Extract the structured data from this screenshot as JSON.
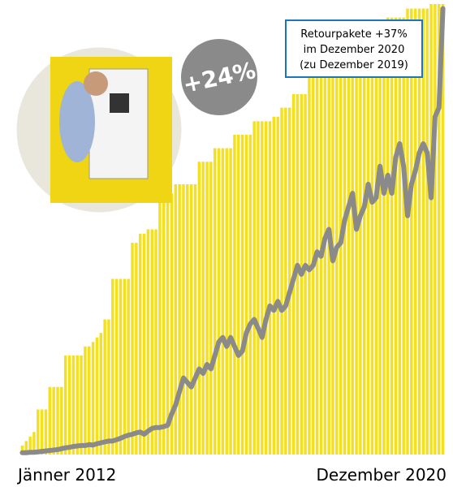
{
  "chart_data": {
    "type": "bar",
    "categories": [
      "Jänner 2012",
      null,
      null,
      null,
      null,
      null,
      null,
      null,
      null,
      null,
      null,
      null,
      null,
      null,
      null,
      null,
      null,
      null,
      null,
      null,
      null,
      null,
      null,
      null,
      null,
      null,
      null,
      null,
      null,
      null,
      null,
      null,
      null,
      null,
      null,
      null,
      null,
      null,
      null,
      null,
      null,
      null,
      null,
      null,
      null,
      null,
      null,
      null,
      null,
      null,
      null,
      null,
      null,
      null,
      null,
      null,
      null,
      null,
      null,
      null,
      null,
      null,
      null,
      null,
      null,
      null,
      null,
      null,
      null,
      null,
      null,
      null,
      null,
      null,
      null,
      null,
      null,
      null,
      null,
      null,
      null,
      null,
      null,
      null,
      null,
      null,
      null,
      null,
      null,
      null,
      null,
      null,
      null,
      null,
      null,
      null,
      null,
      null,
      null,
      null,
      null,
      null,
      null,
      null,
      null,
      null,
      null,
      "Dezember 2020"
    ],
    "series": [
      {
        "type": "bar",
        "color": "#f5e020",
        "values": [
          2,
          3,
          4,
          5,
          10,
          10,
          10,
          15,
          15,
          15,
          15,
          22,
          22,
          22,
          22,
          22,
          24,
          24,
          25,
          26,
          27,
          30,
          30,
          39,
          39,
          39,
          39,
          39,
          47,
          47,
          49,
          49,
          50,
          50,
          50,
          58,
          58,
          58,
          58,
          60,
          60,
          60,
          60,
          60,
          60,
          65,
          65,
          65,
          65,
          68,
          68,
          68,
          68,
          68,
          71,
          71,
          71,
          71,
          71,
          74,
          74,
          74,
          74,
          74,
          75,
          75,
          77,
          77,
          77,
          80,
          80,
          80,
          80,
          84,
          84,
          84,
          84,
          84,
          87,
          87,
          87,
          87,
          87,
          89,
          89,
          89,
          89,
          89,
          92,
          92,
          92,
          92,
          92,
          97,
          97,
          97,
          97,
          97,
          99,
          99,
          99,
          99,
          99,
          99,
          100,
          100,
          100,
          100
        ]
      },
      {
        "type": "line",
        "color": "#8a8a8a",
        "values": [
          0.4,
          0.4,
          0.5,
          0.5,
          0.6,
          0.7,
          0.8,
          0.9,
          1,
          1.1,
          1.3,
          1.5,
          1.6,
          1.8,
          1.9,
          2,
          2,
          2.2,
          2.1,
          2.4,
          2.6,
          2.8,
          3,
          3,
          3.3,
          3.6,
          4,
          4.3,
          4.5,
          4.8,
          5,
          4.5,
          5.2,
          5.8,
          6,
          6,
          6.2,
          6.5,
          9,
          11,
          14,
          17,
          16,
          15,
          17,
          19,
          18,
          20,
          19,
          22,
          25,
          26,
          24,
          26,
          24,
          22,
          23,
          27,
          29,
          30,
          28,
          26,
          30,
          33,
          32,
          34,
          32,
          33,
          36,
          39,
          42,
          40,
          42,
          41,
          42,
          45,
          44,
          48,
          50,
          43,
          46,
          47,
          52,
          55,
          58,
          50,
          53,
          55,
          60,
          56,
          57,
          64,
          58,
          62,
          58,
          66,
          69,
          64,
          53,
          60,
          63,
          67,
          69,
          67,
          57,
          75,
          77,
          99
        ]
      }
    ],
    "ylim": [
      0,
      100
    ],
    "annotations": [
      "+24%",
      "Retourpakete +37%",
      "im Dezember 2020",
      "(zu Dezember 2019)"
    ]
  }
}
